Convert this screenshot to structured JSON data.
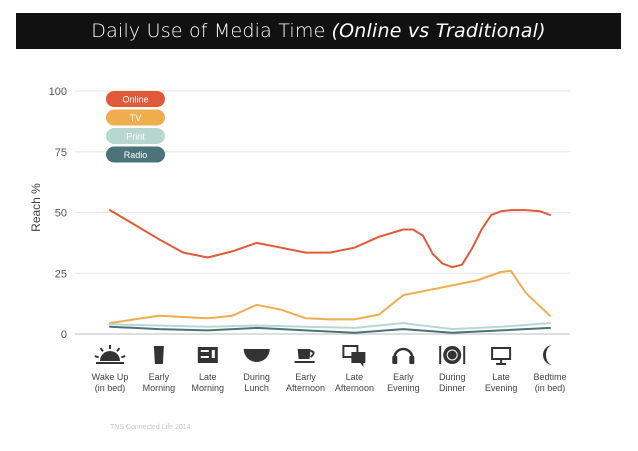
{
  "header": {
    "title": "Daily Use of Media Time",
    "subtitle": "(Online vs Traditional)"
  },
  "source_note": "TNS Connected Life 2014",
  "chart_data": {
    "type": "line",
    "title": "Daily Use of Media Time (Online vs Traditional)",
    "ylabel": "Reach %",
    "xlabel": "",
    "ylim": [
      0,
      100
    ],
    "yticks": [
      0,
      25,
      50,
      75,
      100
    ],
    "grid": true,
    "legend_placement": "top-left",
    "categories": [
      {
        "line1": "Wake Up",
        "line2": "(in bed)",
        "icon": "sunrise-icon"
      },
      {
        "line1": "Early",
        "line2": "Morning",
        "icon": "coffee-cup-icon"
      },
      {
        "line1": "Late",
        "line2": "Morning",
        "icon": "toaster-icon"
      },
      {
        "line1": "During",
        "line2": "Lunch",
        "icon": "bowl-icon"
      },
      {
        "line1": "Early",
        "line2": "Afternoon",
        "icon": "teacup-icon"
      },
      {
        "line1": "Late",
        "line2": "Afternoon",
        "icon": "chat-bubbles-icon"
      },
      {
        "line1": "Early",
        "line2": "Evening",
        "icon": "headphones-icon"
      },
      {
        "line1": "During",
        "line2": "Dinner",
        "icon": "plate-cutlery-icon"
      },
      {
        "line1": "Late",
        "line2": "Evening",
        "icon": "monitor-icon"
      },
      {
        "line1": "Bedtime",
        "line2": "(in bed)",
        "icon": "moon-icon"
      }
    ],
    "x_range": [
      0,
      9
    ],
    "series": [
      {
        "name": "Online",
        "color": "#e05a3a",
        "x": [
          0,
          1,
          1.5,
          2,
          2.5,
          3,
          3.5,
          4,
          4.5,
          5,
          5.5,
          6,
          6.2,
          6.4,
          6.6,
          6.8,
          7,
          7.2,
          7.4,
          7.6,
          7.8,
          8,
          8.2,
          8.5,
          8.8,
          9
        ],
        "y": [
          51,
          39,
          33.5,
          31.5,
          34,
          37.5,
          35.5,
          33.5,
          33.5,
          35.5,
          40,
          43,
          43,
          40.5,
          33,
          29,
          27.5,
          28.5,
          35,
          43,
          49,
          50.5,
          51,
          51,
          50.5,
          49
        ]
      },
      {
        "name": "TV",
        "color": "#f0ad4e",
        "x": [
          0,
          0.5,
          1,
          1.5,
          2,
          2.5,
          3,
          3.5,
          4,
          4.5,
          5,
          5.5,
          6,
          6.5,
          7,
          7.5,
          8,
          8.2,
          8.5,
          9
        ],
        "y": [
          4.5,
          6,
          7.5,
          7,
          6.5,
          7.5,
          12,
          10,
          6.5,
          6,
          6,
          8,
          16,
          18,
          20,
          22,
          25.5,
          26,
          17,
          7.5
        ]
      },
      {
        "name": "Print",
        "color": "#b8d8cf",
        "x": [
          0,
          1,
          2,
          3,
          4,
          5,
          6,
          7,
          8,
          9
        ],
        "y": [
          4,
          3.5,
          3,
          3.5,
          3,
          2.5,
          4.5,
          2,
          3,
          4.5
        ]
      },
      {
        "name": "Radio",
        "color": "#4a7479",
        "x": [
          0,
          1,
          2,
          3,
          4,
          5,
          6,
          7,
          8,
          9
        ],
        "y": [
          3,
          2,
          1.5,
          2.5,
          1.5,
          0.5,
          2,
          0.5,
          1.5,
          2.5
        ]
      }
    ]
  }
}
